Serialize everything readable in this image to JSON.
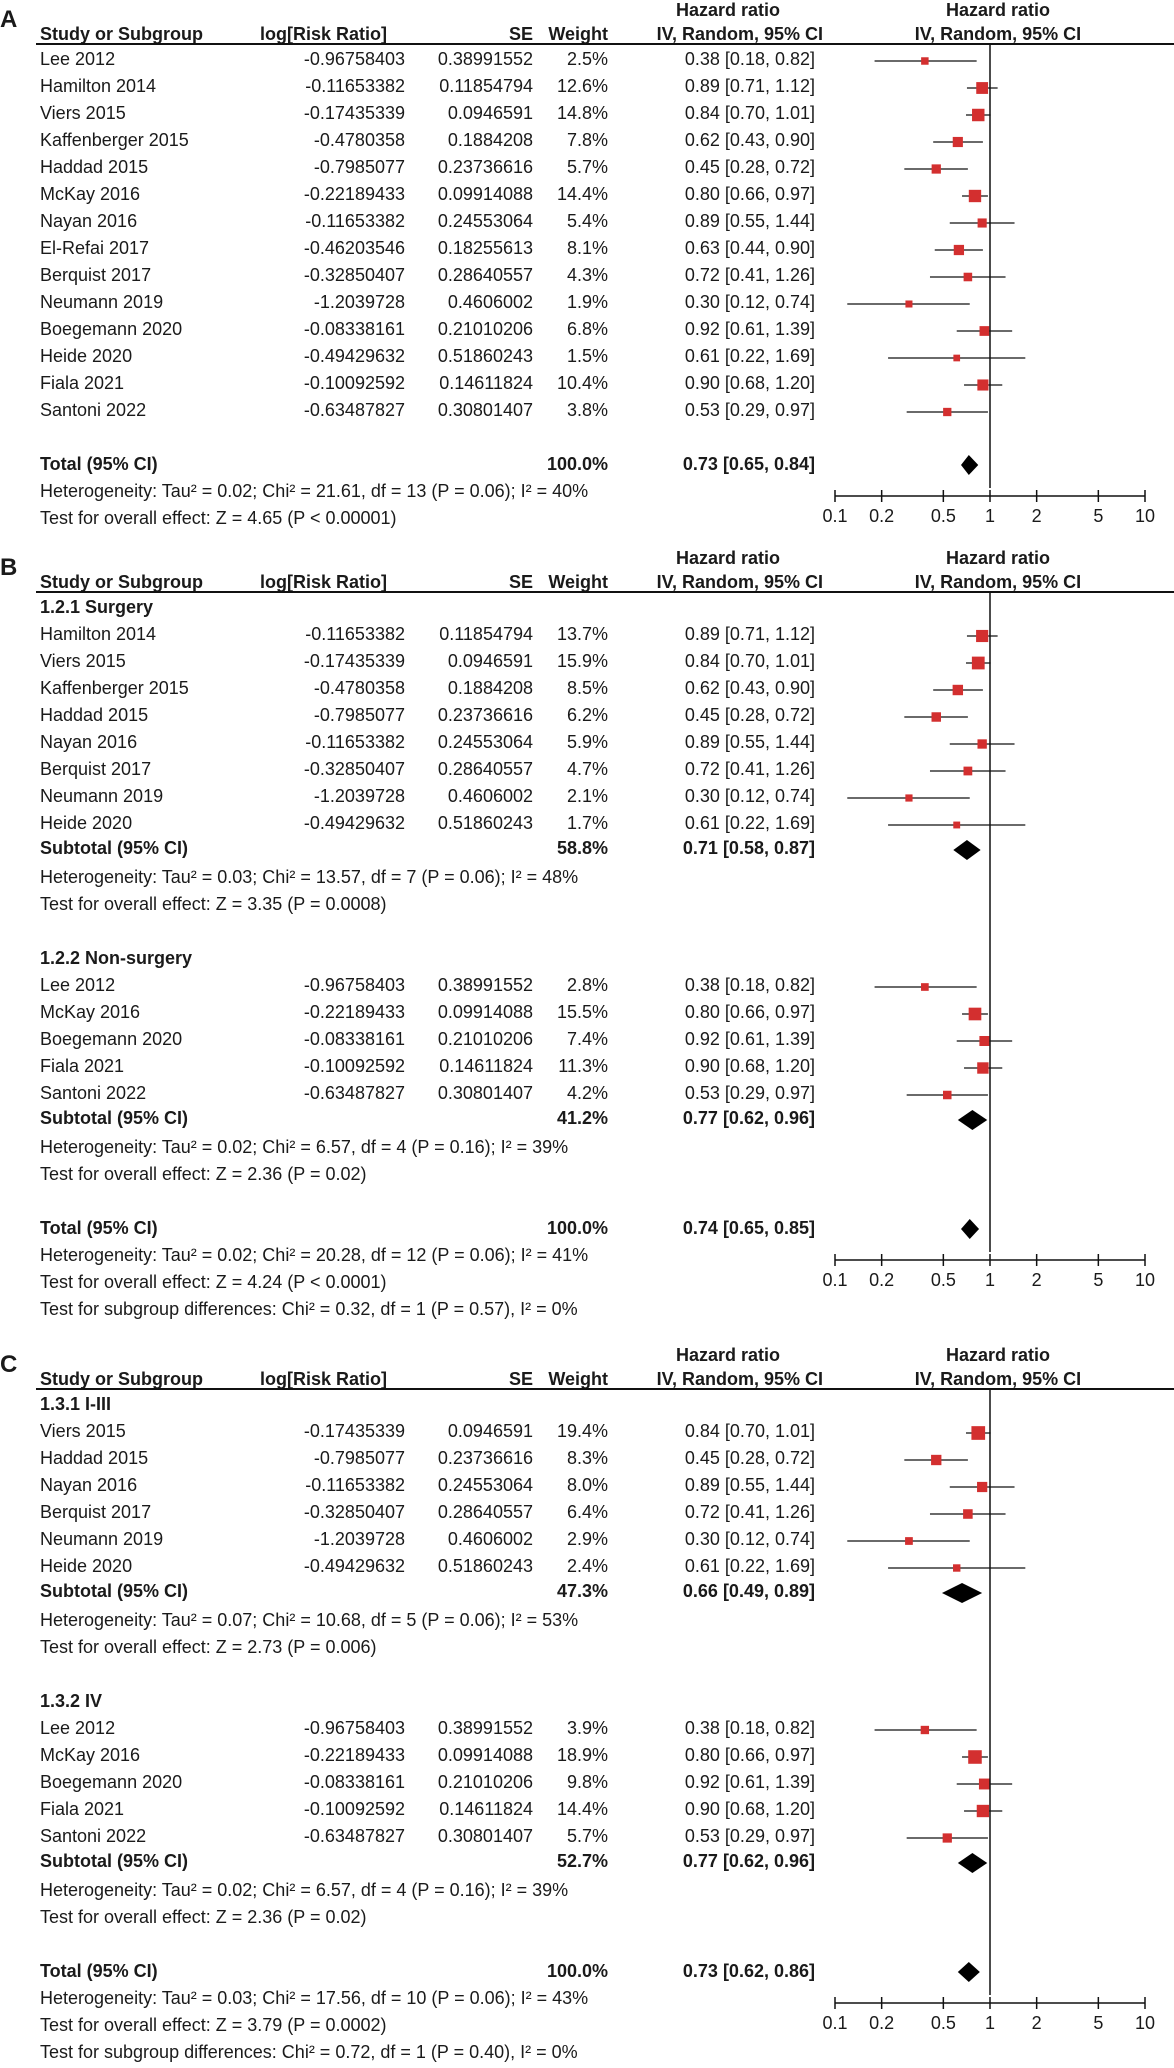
{
  "chart_data": [
    {
      "panel": "A",
      "type": "forest",
      "title": "Hazard ratio",
      "method": "IV, Random, 95% CI",
      "columns": {
        "study": "Study or Subgroup",
        "logrr": "log[Risk Ratio]",
        "se": "SE",
        "weight": "Weight",
        "ci": "IV, Random, 95% CI"
      },
      "scale": {
        "type": "log",
        "min": 0.1,
        "max": 10,
        "ticks": [
          0.1,
          0.2,
          0.5,
          1,
          2,
          5,
          10
        ],
        "tick_labels": [
          "0.1",
          "0.2",
          "0.5",
          "1",
          "2",
          "5",
          "10"
        ]
      },
      "groups": [
        {
          "label": null,
          "studies": [
            {
              "name": "Lee 2012",
              "logrr": "-0.96758403",
              "se": "0.38991552",
              "weight": "2.5%",
              "ci": "0.38 [0.18, 0.82]",
              "est": 0.38,
              "lo": 0.18,
              "hi": 0.82,
              "w": 2.5
            },
            {
              "name": "Hamilton 2014",
              "logrr": "-0.11653382",
              "se": "0.11854794",
              "weight": "12.6%",
              "ci": "0.89 [0.71, 1.12]",
              "est": 0.89,
              "lo": 0.71,
              "hi": 1.12,
              "w": 12.6
            },
            {
              "name": "Viers 2015",
              "logrr": "-0.17435339",
              "se": "0.0946591",
              "weight": "14.8%",
              "ci": "0.84 [0.70, 1.01]",
              "est": 0.84,
              "lo": 0.7,
              "hi": 1.01,
              "w": 14.8
            },
            {
              "name": "Kaffenberger 2015",
              "logrr": "-0.4780358",
              "se": "0.1884208",
              "weight": "7.8%",
              "ci": "0.62 [0.43, 0.90]",
              "est": 0.62,
              "lo": 0.43,
              "hi": 0.9,
              "w": 7.8
            },
            {
              "name": "Haddad 2015",
              "logrr": "-0.7985077",
              "se": "0.23736616",
              "weight": "5.7%",
              "ci": "0.45 [0.28, 0.72]",
              "est": 0.45,
              "lo": 0.28,
              "hi": 0.72,
              "w": 5.7
            },
            {
              "name": "McKay 2016",
              "logrr": "-0.22189433",
              "se": "0.09914088",
              "weight": "14.4%",
              "ci": "0.80 [0.66, 0.97]",
              "est": 0.8,
              "lo": 0.66,
              "hi": 0.97,
              "w": 14.4
            },
            {
              "name": "Nayan 2016",
              "logrr": "-0.11653382",
              "se": "0.24553064",
              "weight": "5.4%",
              "ci": "0.89 [0.55, 1.44]",
              "est": 0.89,
              "lo": 0.55,
              "hi": 1.44,
              "w": 5.4
            },
            {
              "name": "El-Refai 2017",
              "logrr": "-0.46203546",
              "se": "0.18255613",
              "weight": "8.1%",
              "ci": "0.63 [0.44, 0.90]",
              "est": 0.63,
              "lo": 0.44,
              "hi": 0.9,
              "w": 8.1
            },
            {
              "name": "Berquist 2017",
              "logrr": "-0.32850407",
              "se": "0.28640557",
              "weight": "4.3%",
              "ci": "0.72 [0.41, 1.26]",
              "est": 0.72,
              "lo": 0.41,
              "hi": 1.26,
              "w": 4.3
            },
            {
              "name": "Neumann 2019",
              "logrr": "-1.2039728",
              "se": "0.4606002",
              "weight": "1.9%",
              "ci": "0.30 [0.12, 0.74]",
              "est": 0.3,
              "lo": 0.12,
              "hi": 0.74,
              "w": 1.9
            },
            {
              "name": "Boegemann 2020",
              "logrr": "-0.08338161",
              "se": "0.21010206",
              "weight": "6.8%",
              "ci": "0.92 [0.61, 1.39]",
              "est": 0.92,
              "lo": 0.61,
              "hi": 1.39,
              "w": 6.8
            },
            {
              "name": "Heide 2020",
              "logrr": "-0.49429632",
              "se": "0.51860243",
              "weight": "1.5%",
              "ci": "0.61 [0.22, 1.69]",
              "est": 0.61,
              "lo": 0.22,
              "hi": 1.69,
              "w": 1.5
            },
            {
              "name": "Fiala 2021",
              "logrr": "-0.10092592",
              "se": "0.14611824",
              "weight": "10.4%",
              "ci": "0.90 [0.68, 1.20]",
              "est": 0.9,
              "lo": 0.68,
              "hi": 1.2,
              "w": 10.4
            },
            {
              "name": "Santoni 2022",
              "logrr": "-0.63487827",
              "se": "0.30801407",
              "weight": "3.8%",
              "ci": "0.53 [0.29, 0.97]",
              "est": 0.53,
              "lo": 0.29,
              "hi": 0.97,
              "w": 3.8
            }
          ],
          "subtotal": null
        }
      ],
      "total": {
        "label": "Total (95% CI)",
        "weight": "100.0%",
        "ci": "0.73 [0.65, 0.84]",
        "est": 0.73,
        "lo": 0.65,
        "hi": 0.84
      },
      "notes": [
        "Heterogeneity: Tau² = 0.02; Chi² = 21.61, df = 13 (P = 0.06); I² = 40%",
        "Test for overall effect: Z = 4.65 (P < 0.00001)"
      ]
    },
    {
      "panel": "B",
      "type": "forest",
      "title": "Hazard ratio",
      "method": "IV, Random, 95% CI",
      "columns": {
        "study": "Study or Subgroup",
        "logrr": "log[Risk Ratio]",
        "se": "SE",
        "weight": "Weight",
        "ci": "IV, Random, 95% CI"
      },
      "scale": {
        "type": "log",
        "min": 0.1,
        "max": 10,
        "ticks": [
          0.1,
          0.2,
          0.5,
          1,
          2,
          5,
          10
        ],
        "tick_labels": [
          "0.1",
          "0.2",
          "0.5",
          "1",
          "2",
          "5",
          "10"
        ]
      },
      "groups": [
        {
          "label": "1.2.1 Surgery",
          "studies": [
            {
              "name": "Hamilton 2014",
              "logrr": "-0.11653382",
              "se": "0.11854794",
              "weight": "13.7%",
              "ci": "0.89 [0.71, 1.12]",
              "est": 0.89,
              "lo": 0.71,
              "hi": 1.12,
              "w": 13.7
            },
            {
              "name": "Viers 2015",
              "logrr": "-0.17435339",
              "se": "0.0946591",
              "weight": "15.9%",
              "ci": "0.84 [0.70, 1.01]",
              "est": 0.84,
              "lo": 0.7,
              "hi": 1.01,
              "w": 15.9
            },
            {
              "name": "Kaffenberger 2015",
              "logrr": "-0.4780358",
              "se": "0.1884208",
              "weight": "8.5%",
              "ci": "0.62 [0.43, 0.90]",
              "est": 0.62,
              "lo": 0.43,
              "hi": 0.9,
              "w": 8.5
            },
            {
              "name": "Haddad 2015",
              "logrr": "-0.7985077",
              "se": "0.23736616",
              "weight": "6.2%",
              "ci": "0.45 [0.28, 0.72]",
              "est": 0.45,
              "lo": 0.28,
              "hi": 0.72,
              "w": 6.2
            },
            {
              "name": "Nayan 2016",
              "logrr": "-0.11653382",
              "se": "0.24553064",
              "weight": "5.9%",
              "ci": "0.89 [0.55, 1.44]",
              "est": 0.89,
              "lo": 0.55,
              "hi": 1.44,
              "w": 5.9
            },
            {
              "name": "Berquist 2017",
              "logrr": "-0.32850407",
              "se": "0.28640557",
              "weight": "4.7%",
              "ci": "0.72 [0.41, 1.26]",
              "est": 0.72,
              "lo": 0.41,
              "hi": 1.26,
              "w": 4.7
            },
            {
              "name": "Neumann 2019",
              "logrr": "-1.2039728",
              "se": "0.4606002",
              "weight": "2.1%",
              "ci": "0.30 [0.12, 0.74]",
              "est": 0.3,
              "lo": 0.12,
              "hi": 0.74,
              "w": 2.1
            },
            {
              "name": "Heide 2020",
              "logrr": "-0.49429632",
              "se": "0.51860243",
              "weight": "1.7%",
              "ci": "0.61 [0.22, 1.69]",
              "est": 0.61,
              "lo": 0.22,
              "hi": 1.69,
              "w": 1.7
            }
          ],
          "subtotal": {
            "label": "Subtotal (95% CI)",
            "weight": "58.8%",
            "ci": "0.71 [0.58, 0.87]",
            "est": 0.71,
            "lo": 0.58,
            "hi": 0.87,
            "notes": [
              "Heterogeneity: Tau² = 0.03; Chi² = 13.57, df = 7 (P = 0.06); I² = 48%",
              "Test for overall effect: Z = 3.35 (P = 0.0008)"
            ]
          }
        },
        {
          "label": "1.2.2 Non-surgery",
          "studies": [
            {
              "name": "Lee 2012",
              "logrr": "-0.96758403",
              "se": "0.38991552",
              "weight": "2.8%",
              "ci": "0.38 [0.18, 0.82]",
              "est": 0.38,
              "lo": 0.18,
              "hi": 0.82,
              "w": 2.8
            },
            {
              "name": "McKay 2016",
              "logrr": "-0.22189433",
              "se": "0.09914088",
              "weight": "15.5%",
              "ci": "0.80 [0.66, 0.97]",
              "est": 0.8,
              "lo": 0.66,
              "hi": 0.97,
              "w": 15.5
            },
            {
              "name": "Boegemann 2020",
              "logrr": "-0.08338161",
              "se": "0.21010206",
              "weight": "7.4%",
              "ci": "0.92 [0.61, 1.39]",
              "est": 0.92,
              "lo": 0.61,
              "hi": 1.39,
              "w": 7.4
            },
            {
              "name": "Fiala 2021",
              "logrr": "-0.10092592",
              "se": "0.14611824",
              "weight": "11.3%",
              "ci": "0.90 [0.68, 1.20]",
              "est": 0.9,
              "lo": 0.68,
              "hi": 1.2,
              "w": 11.3
            },
            {
              "name": "Santoni 2022",
              "logrr": "-0.63487827",
              "se": "0.30801407",
              "weight": "4.2%",
              "ci": "0.53 [0.29, 0.97]",
              "est": 0.53,
              "lo": 0.29,
              "hi": 0.97,
              "w": 4.2
            }
          ],
          "subtotal": {
            "label": "Subtotal (95% CI)",
            "weight": "41.2%",
            "ci": "0.77 [0.62, 0.96]",
            "est": 0.77,
            "lo": 0.62,
            "hi": 0.96,
            "notes": [
              "Heterogeneity: Tau² = 0.02; Chi² = 6.57, df = 4 (P = 0.16); I² = 39%",
              "Test for overall effect: Z = 2.36 (P = 0.02)"
            ]
          }
        }
      ],
      "total": {
        "label": "Total (95% CI)",
        "weight": "100.0%",
        "ci": "0.74 [0.65, 0.85]",
        "est": 0.74,
        "lo": 0.65,
        "hi": 0.85
      },
      "notes": [
        "Heterogeneity: Tau² = 0.02; Chi² = 20.28, df = 12 (P = 0.06); I² = 41%",
        "Test for overall effect: Z = 4.24 (P < 0.0001)",
        "Test for subgroup differences: Chi² = 0.32, df = 1 (P = 0.57), I² = 0%"
      ]
    },
    {
      "panel": "C",
      "type": "forest",
      "title": "Hazard ratio",
      "method": "IV, Random, 95% CI",
      "columns": {
        "study": "Study or Subgroup",
        "logrr": "log[Risk Ratio]",
        "se": "SE",
        "weight": "Weight",
        "ci": "IV, Random, 95% CI"
      },
      "scale": {
        "type": "log",
        "min": 0.1,
        "max": 10,
        "ticks": [
          0.1,
          0.2,
          0.5,
          1,
          2,
          5,
          10
        ],
        "tick_labels": [
          "0.1",
          "0.2",
          "0.5",
          "1",
          "2",
          "5",
          "10"
        ]
      },
      "groups": [
        {
          "label": "1.3.1 I-III",
          "studies": [
            {
              "name": "Viers 2015",
              "logrr": "-0.17435339",
              "se": "0.0946591",
              "weight": "19.4%",
              "ci": "0.84 [0.70, 1.01]",
              "est": 0.84,
              "lo": 0.7,
              "hi": 1.01,
              "w": 19.4
            },
            {
              "name": "Haddad 2015",
              "logrr": "-0.7985077",
              "se": "0.23736616",
              "weight": "8.3%",
              "ci": "0.45 [0.28, 0.72]",
              "est": 0.45,
              "lo": 0.28,
              "hi": 0.72,
              "w": 8.3
            },
            {
              "name": "Nayan 2016",
              "logrr": "-0.11653382",
              "se": "0.24553064",
              "weight": "8.0%",
              "ci": "0.89 [0.55, 1.44]",
              "est": 0.89,
              "lo": 0.55,
              "hi": 1.44,
              "w": 8.0
            },
            {
              "name": "Berquist 2017",
              "logrr": "-0.32850407",
              "se": "0.28640557",
              "weight": "6.4%",
              "ci": "0.72 [0.41, 1.26]",
              "est": 0.72,
              "lo": 0.41,
              "hi": 1.26,
              "w": 6.4
            },
            {
              "name": "Neumann 2019",
              "logrr": "-1.2039728",
              "se": "0.4606002",
              "weight": "2.9%",
              "ci": "0.30 [0.12, 0.74]",
              "est": 0.3,
              "lo": 0.12,
              "hi": 0.74,
              "w": 2.9
            },
            {
              "name": "Heide 2020",
              "logrr": "-0.49429632",
              "se": "0.51860243",
              "weight": "2.4%",
              "ci": "0.61 [0.22, 1.69]",
              "est": 0.61,
              "lo": 0.22,
              "hi": 1.69,
              "w": 2.4
            }
          ],
          "subtotal": {
            "label": "Subtotal (95% CI)",
            "weight": "47.3%",
            "ci": "0.66 [0.49, 0.89]",
            "est": 0.66,
            "lo": 0.49,
            "hi": 0.89,
            "notes": [
              "Heterogeneity: Tau² = 0.07; Chi² = 10.68, df = 5 (P = 0.06); I² = 53%",
              "Test for overall effect: Z = 2.73 (P = 0.006)"
            ]
          }
        },
        {
          "label": "1.3.2 IV",
          "studies": [
            {
              "name": "Lee 2012",
              "logrr": "-0.96758403",
              "se": "0.38991552",
              "weight": "3.9%",
              "ci": "0.38 [0.18, 0.82]",
              "est": 0.38,
              "lo": 0.18,
              "hi": 0.82,
              "w": 3.9
            },
            {
              "name": "McKay 2016",
              "logrr": "-0.22189433",
              "se": "0.09914088",
              "weight": "18.9%",
              "ci": "0.80 [0.66, 0.97]",
              "est": 0.8,
              "lo": 0.66,
              "hi": 0.97,
              "w": 18.9
            },
            {
              "name": "Boegemann 2020",
              "logrr": "-0.08338161",
              "se": "0.21010206",
              "weight": "9.8%",
              "ci": "0.92 [0.61, 1.39]",
              "est": 0.92,
              "lo": 0.61,
              "hi": 1.39,
              "w": 9.8
            },
            {
              "name": "Fiala 2021",
              "logrr": "-0.10092592",
              "se": "0.14611824",
              "weight": "14.4%",
              "ci": "0.90 [0.68, 1.20]",
              "est": 0.9,
              "lo": 0.68,
              "hi": 1.2,
              "w": 14.4
            },
            {
              "name": "Santoni 2022",
              "logrr": "-0.63487827",
              "se": "0.30801407",
              "weight": "5.7%",
              "ci": "0.53 [0.29, 0.97]",
              "est": 0.53,
              "lo": 0.29,
              "hi": 0.97,
              "w": 5.7
            }
          ],
          "subtotal": {
            "label": "Subtotal (95% CI)",
            "weight": "52.7%",
            "ci": "0.77 [0.62, 0.96]",
            "est": 0.77,
            "lo": 0.62,
            "hi": 0.96,
            "notes": [
              "Heterogeneity: Tau² = 0.02; Chi² = 6.57, df = 4 (P = 0.16); I² = 39%",
              "Test for overall effect: Z = 2.36 (P = 0.02)"
            ]
          }
        }
      ],
      "total": {
        "label": "Total (95% CI)",
        "weight": "100.0%",
        "ci": "0.73 [0.62, 0.86]",
        "est": 0.73,
        "lo": 0.62,
        "hi": 0.86
      },
      "notes": [
        "Heterogeneity: Tau² = 0.03; Chi² = 17.56, df = 10 (P = 0.06); I² = 43%",
        "Test for overall effect: Z = 3.79 (P = 0.0002)",
        "Test for subgroup differences: Chi² = 0.72, df = 1 (P = 0.40), I² = 0%"
      ]
    }
  ],
  "colors": {
    "marker": "#d32f2f",
    "line": "#111111",
    "diamond": "#000000"
  }
}
